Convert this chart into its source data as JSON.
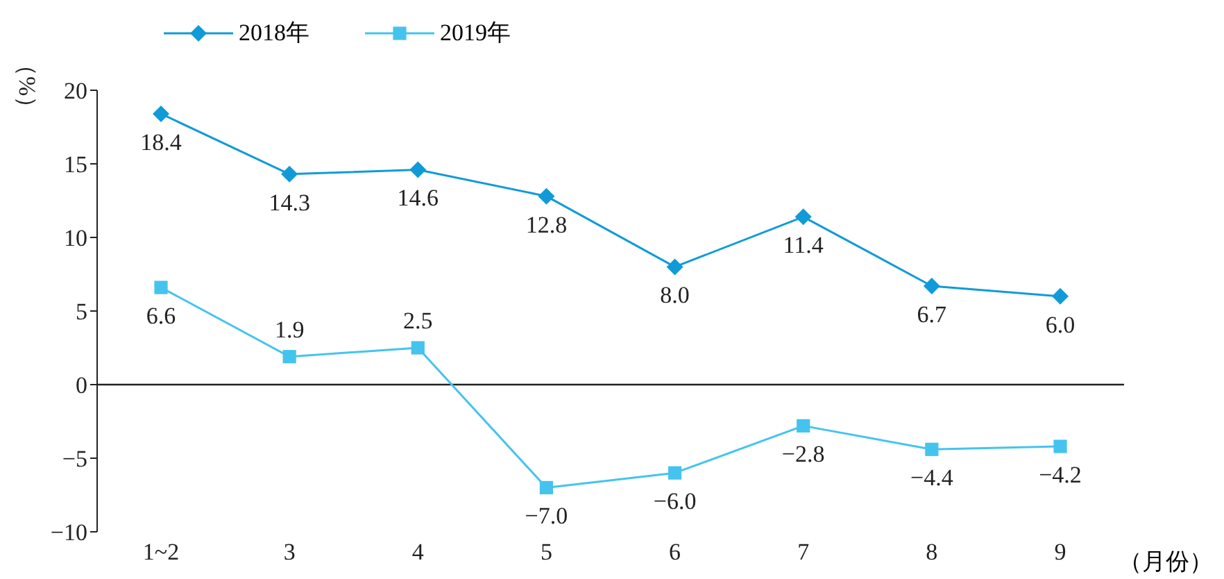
{
  "chart_data": {
    "type": "line",
    "ylabel": "（%）",
    "xlabel": "（月份）",
    "categories": [
      "1~2",
      "3",
      "4",
      "5",
      "6",
      "7",
      "8",
      "9"
    ],
    "series": [
      {
        "name": "2018年",
        "color": "#109bd8",
        "marker": "diamond",
        "values": [
          18.4,
          14.3,
          14.6,
          12.8,
          8.0,
          11.4,
          6.7,
          6.0
        ],
        "value_labels": [
          "18.4",
          "14.3",
          "14.6",
          "12.8",
          "8.0",
          "11.4",
          "6.7",
          "6.0"
        ]
      },
      {
        "name": "2019年",
        "color": "#45c3ef",
        "marker": "square",
        "values": [
          6.6,
          1.9,
          2.5,
          -7.0,
          -6.0,
          -2.8,
          -4.4,
          -4.2
        ],
        "value_labels": [
          "6.6",
          "1.9",
          "2.5",
          "−7.0",
          "−6.0",
          "−2.8",
          "−4.4",
          "−4.2"
        ]
      }
    ],
    "ylim": [
      -10,
      20
    ],
    "yticks": [
      -10,
      -5,
      0,
      5,
      10,
      15,
      20
    ],
    "ref_lines": [
      {
        "axis": "y",
        "value": 0,
        "color": "#222222"
      }
    ],
    "legend": "top"
  }
}
